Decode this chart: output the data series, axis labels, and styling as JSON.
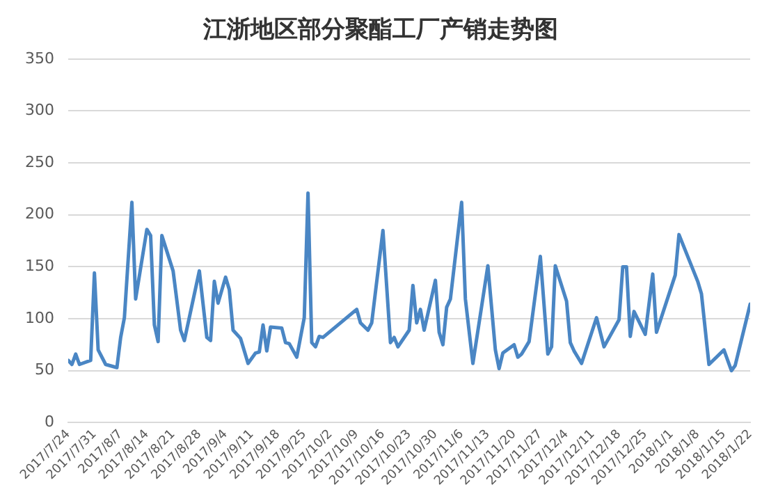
{
  "chart_data": {
    "type": "line",
    "title": "江浙地区部分聚酯工厂产销走势图",
    "x": [
      "2017-07-24",
      "2017-07-25",
      "2017-07-26",
      "2017-07-27",
      "2017-07-30",
      "2017-07-31",
      "2017-08-01",
      "2017-08-03",
      "2017-08-06",
      "2017-08-07",
      "2017-08-08",
      "2017-08-10",
      "2017-08-11",
      "2017-08-14",
      "2017-08-15",
      "2017-08-16",
      "2017-08-17",
      "2017-08-18",
      "2017-08-21",
      "2017-08-23",
      "2017-08-24",
      "2017-08-28",
      "2017-08-30",
      "2017-08-31",
      "2017-09-01",
      "2017-09-02",
      "2017-09-04",
      "2017-09-05",
      "2017-09-06",
      "2017-09-08",
      "2017-09-10",
      "2017-09-12",
      "2017-09-13",
      "2017-09-14",
      "2017-09-15",
      "2017-09-16",
      "2017-09-19",
      "2017-09-20",
      "2017-09-21",
      "2017-09-23",
      "2017-09-25",
      "2017-09-26",
      "2017-09-27",
      "2017-09-28",
      "2017-09-29",
      "2017-09-30",
      "2017-10-09",
      "2017-10-10",
      "2017-10-12",
      "2017-10-13",
      "2017-10-16",
      "2017-10-18",
      "2017-10-19",
      "2017-10-20",
      "2017-10-23",
      "2017-10-24",
      "2017-10-25",
      "2017-10-26",
      "2017-10-27",
      "2017-10-30",
      "2017-10-31",
      "2017-11-01",
      "2017-11-02",
      "2017-11-03",
      "2017-11-06",
      "2017-11-07",
      "2017-11-09",
      "2017-11-13",
      "2017-11-15",
      "2017-11-16",
      "2017-11-17",
      "2017-11-20",
      "2017-11-21",
      "2017-11-22",
      "2017-11-24",
      "2017-11-27",
      "2017-11-29",
      "2017-11-30",
      "2017-12-01",
      "2017-12-04",
      "2017-12-05",
      "2017-12-06",
      "2017-12-08",
      "2017-12-12",
      "2017-12-14",
      "2017-12-18",
      "2017-12-19",
      "2017-12-20",
      "2017-12-21",
      "2017-12-22",
      "2017-12-25",
      "2017-12-27",
      "2017-12-28",
      "2018-01-02",
      "2018-01-03",
      "2018-01-08",
      "2018-01-09",
      "2018-01-11",
      "2018-01-15",
      "2018-01-17",
      "2018-01-18",
      "2018-01-22"
    ],
    "series": [
      {
        "color": "#4a86c4",
        "values": [
          60,
          56,
          66,
          56,
          60,
          144,
          70,
          56,
          53,
          82,
          101,
          212,
          119,
          186,
          180,
          94,
          78,
          180,
          146,
          89,
          79,
          146,
          82,
          79,
          136,
          115,
          140,
          128,
          89,
          81,
          57,
          67,
          68,
          94,
          69,
          92,
          91,
          77,
          76,
          63,
          101,
          221,
          77,
          73,
          83,
          82,
          109,
          96,
          89,
          96,
          185,
          77,
          82,
          73,
          89,
          132,
          96,
          109,
          89,
          137,
          87,
          75,
          111,
          119,
          212,
          119,
          57,
          151,
          70,
          52,
          67,
          75,
          63,
          66,
          78,
          160,
          66,
          73,
          151,
          117,
          77,
          69,
          57,
          101,
          73,
          99,
          150,
          150,
          83,
          107,
          85,
          143,
          87,
          142,
          181,
          136,
          124,
          56,
          70,
          50,
          55,
          114
        ]
      }
    ],
    "xlim": [
      "2017-07-24",
      "2018-01-22"
    ],
    "xticks": [
      {
        "value": "2017-07-24",
        "label": "2017/7/24"
      },
      {
        "value": "2017-07-31",
        "label": "2017/7/31"
      },
      {
        "value": "2017-08-07",
        "label": "2017/8/7"
      },
      {
        "value": "2017-08-14",
        "label": "2017/8/14"
      },
      {
        "value": "2017-08-21",
        "label": "2017/8/21"
      },
      {
        "value": "2017-08-28",
        "label": "2017/8/28"
      },
      {
        "value": "2017-09-04",
        "label": "2017/9/4"
      },
      {
        "value": "2017-09-11",
        "label": "2017/9/11"
      },
      {
        "value": "2017-09-18",
        "label": "2017/9/18"
      },
      {
        "value": "2017-09-25",
        "label": "2017/9/25"
      },
      {
        "value": "2017-10-02",
        "label": "2017/10/2"
      },
      {
        "value": "2017-10-09",
        "label": "2017/10/9"
      },
      {
        "value": "2017-10-16",
        "label": "2017/10/16"
      },
      {
        "value": "2017-10-23",
        "label": "2017/10/23"
      },
      {
        "value": "2017-10-30",
        "label": "2017/10/30"
      },
      {
        "value": "2017-11-06",
        "label": "2017/11/6"
      },
      {
        "value": "2017-11-13",
        "label": "2017/11/13"
      },
      {
        "value": "2017-11-20",
        "label": "2017/11/20"
      },
      {
        "value": "2017-11-27",
        "label": "2017/11/27"
      },
      {
        "value": "2017-12-04",
        "label": "2017/12/4"
      },
      {
        "value": "2017-12-11",
        "label": "2017/12/11"
      },
      {
        "value": "2017-12-18",
        "label": "2017/12/18"
      },
      {
        "value": "2017-12-25",
        "label": "2017/12/25"
      },
      {
        "value": "2018-01-01",
        "label": "2018/1/1"
      },
      {
        "value": "2018-01-08",
        "label": "2018/1/8"
      },
      {
        "value": "2018-01-15",
        "label": "2018/1/15"
      },
      {
        "value": "2018-01-22",
        "label": "2018/1/22"
      }
    ],
    "ylim": [
      0,
      350
    ],
    "yticks": [
      0,
      50,
      100,
      150,
      200,
      250,
      300,
      350
    ],
    "grid": "y",
    "marker": "none",
    "line_style": "solid",
    "legend": false
  }
}
